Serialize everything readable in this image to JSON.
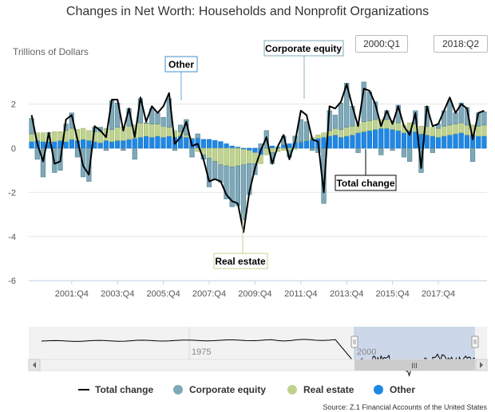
{
  "title": "Changes in Net Worth: Households and Nonprofit Organizations",
  "ylabel": "Trillions of Dollars",
  "range": {
    "from": "2000:Q1",
    "to": "2018:Q2"
  },
  "source": "Source: Z.1 Financial Accounts of the United States",
  "callouts": {
    "other": "Other",
    "corporate_equity": "Corporate equity",
    "real_estate": "Real estate",
    "total_change": "Total change"
  },
  "navigator": {
    "labels": [
      "1975",
      "2000"
    ],
    "handle": "III"
  },
  "colors": {
    "total_change": "#000000",
    "corporate_equity": "#7fa9b8",
    "real_estate": "#bfd38f",
    "other": "#1f88e5"
  },
  "chart_data": {
    "type": "bar",
    "stacked": true,
    "title": "Changes in Net Worth: Households and Nonprofit Organizations",
    "ylabel": "Trillions of Dollars",
    "xlabel": "",
    "ylim": [
      -6,
      3
    ],
    "yticks": [
      2,
      0,
      -2,
      -4,
      -6
    ],
    "xtick_labels": [
      "2001:Q4",
      "2003:Q4",
      "2005:Q4",
      "2007:Q4",
      "2009:Q4",
      "2011:Q4",
      "2013:Q4",
      "2015:Q4",
      "2017:Q4"
    ],
    "legend_position": "bottom",
    "series": [
      {
        "name": "Other",
        "kind": "bar",
        "values": [
          0.3,
          0.35,
          0.3,
          0.3,
          0.3,
          0.35,
          0.3,
          0.4,
          0.35,
          0.4,
          0.35,
          0.3,
          0.25,
          0.35,
          0.3,
          0.35,
          0.35,
          0.4,
          0.45,
          0.5,
          0.55,
          0.5,
          0.55,
          0.5,
          0.55,
          0.5,
          0.55,
          0.5,
          0.45,
          0.45,
          0.4,
          0.4,
          0.35,
          0.3,
          0.2,
          0.1,
          0.05,
          -0.05,
          -0.1,
          -0.2,
          -0.3,
          0.0,
          0.1,
          0.05,
          0.15,
          0.2,
          0.25,
          0.3,
          0.35,
          0.4,
          0.45,
          0.5,
          0.55,
          0.6,
          0.5,
          0.55,
          0.6,
          0.7,
          0.75,
          0.8,
          0.85,
          0.9,
          0.9,
          0.85,
          0.8,
          0.7,
          0.8,
          0.75,
          0.65,
          0.6,
          0.55,
          0.5,
          0.55,
          0.6,
          0.65,
          0.7,
          0.6,
          0.6,
          0.55,
          0.55
        ]
      },
      {
        "name": "Real estate",
        "kind": "bar",
        "values": [
          0.35,
          0.35,
          0.4,
          0.4,
          0.45,
          0.4,
          0.5,
          0.5,
          0.5,
          0.5,
          0.45,
          0.45,
          0.5,
          0.55,
          0.55,
          0.6,
          0.6,
          0.6,
          0.6,
          0.65,
          0.6,
          0.6,
          0.55,
          0.5,
          0.4,
          0.3,
          0.2,
          0.1,
          0.0,
          -0.15,
          -0.3,
          -0.45,
          -0.6,
          -0.75,
          -0.8,
          -0.85,
          -0.8,
          -0.7,
          -0.6,
          -0.5,
          -0.4,
          -0.3,
          -0.2,
          -0.15,
          -0.1,
          -0.1,
          -0.05,
          0.0,
          0.05,
          0.1,
          0.15,
          0.2,
          0.25,
          0.3,
          0.35,
          0.4,
          0.4,
          0.4,
          0.45,
          0.45,
          0.45,
          0.4,
          0.4,
          0.4,
          0.35,
          0.35,
          0.35,
          0.35,
          0.35,
          0.4,
          0.4,
          0.4,
          0.45,
          0.45,
          0.45,
          0.45,
          0.45,
          0.45,
          0.45,
          0.5
        ]
      },
      {
        "name": "Corporate equity",
        "kind": "bar",
        "values": [
          0.7,
          -0.5,
          -1.3,
          0.0,
          -1.1,
          -1.0,
          0.3,
          0.7,
          -0.4,
          -1.3,
          -1.5,
          0.2,
          0.2,
          -0.1,
          1.3,
          1.1,
          -0.1,
          0.8,
          -0.5,
          1.1,
          0.0,
          0.7,
          0.5,
          0.4,
          1.3,
          -0.1,
          0.3,
          0.7,
          -0.4,
          0.2,
          -0.2,
          -1.3,
          -0.8,
          -0.8,
          -1.5,
          -1.8,
          -1.8,
          -2.5,
          -1.4,
          -0.5,
          0.2,
          0.8,
          -0.5,
          0.0,
          0.4,
          -0.3,
          0.3,
          1.0,
          0.8,
          -0.1,
          -0.2,
          -2.5,
          0.9,
          0.6,
          1.2,
          2.0,
          0.9,
          -0.2,
          1.8,
          1.3,
          0.8,
          -0.3,
          0.4,
          -0.1,
          0.8,
          -0.4,
          -0.6,
          0.6,
          -1.1,
          0.9,
          -0.2,
          0.2,
          0.7,
          1.1,
          0.5,
          0.9,
          0.8,
          -0.6,
          0.6,
          0.6
        ]
      },
      {
        "name": "Total change",
        "kind": "line",
        "values": [
          1.5,
          0.2,
          -0.6,
          0.7,
          -0.7,
          -0.6,
          1.3,
          1.5,
          0.4,
          -0.8,
          -1.2,
          1.0,
          0.8,
          0.5,
          2.2,
          2.2,
          0.8,
          1.8,
          0.5,
          2.3,
          1.2,
          1.9,
          1.6,
          1.9,
          2.5,
          0.2,
          0.5,
          1.2,
          0.1,
          0.2,
          -0.5,
          -1.5,
          -1.4,
          -1.5,
          -2.1,
          -2.4,
          -2.5,
          -3.8,
          -2.0,
          -0.9,
          -0.1,
          0.5,
          -0.7,
          0.1,
          0.6,
          -0.5,
          0.3,
          1.7,
          1.5,
          0.4,
          0.3,
          -2.0,
          1.9,
          1.8,
          2.1,
          2.9,
          1.9,
          1.0,
          2.7,
          2.6,
          2.0,
          1.0,
          1.7,
          1.1,
          1.9,
          1.0,
          0.6,
          1.6,
          -0.9,
          1.9,
          1.0,
          1.1,
          1.7,
          2.3,
          1.6,
          2.0,
          1.8,
          0.4,
          1.6,
          1.7
        ]
      }
    ]
  }
}
